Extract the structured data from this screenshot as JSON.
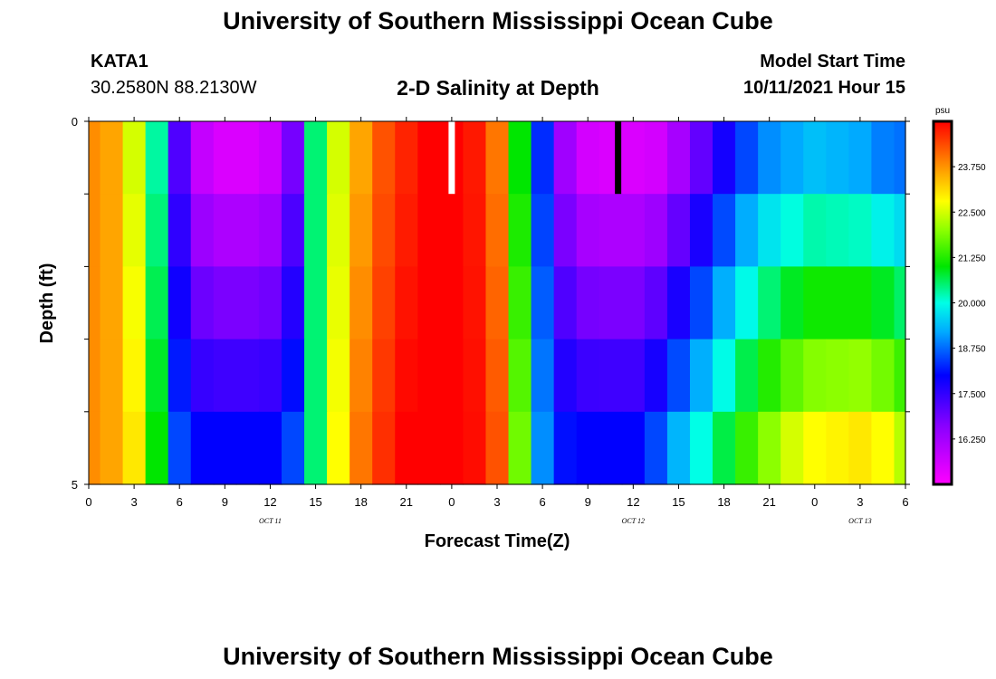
{
  "header": {
    "title_top": "University of Southern Mississippi Ocean Cube",
    "title_bottom": "University of Southern Mississippi Ocean Cube",
    "station_id": "KATA1",
    "station_coords": "30.2580N  88.2130W",
    "chart_title": "2-D Salinity at Depth",
    "model_label": "Model Start Time",
    "model_time": "10/11/2021 Hour 15"
  },
  "chart_data": {
    "type": "heatmap",
    "title": "2-D Salinity at Depth",
    "xlabel": "Forecast Time(Z)",
    "ylabel": "Depth (ft)",
    "x_tick_labels": [
      "0",
      "3",
      "6",
      "9",
      "12",
      "15",
      "18",
      "21",
      "0",
      "3",
      "6",
      "9",
      "12",
      "15",
      "18",
      "21",
      "0",
      "3",
      "6"
    ],
    "x_range_hours": [
      0,
      54
    ],
    "date_labels": [
      {
        "text": "OCT 11",
        "hour": 12
      },
      {
        "text": "OCT 12",
        "hour": 36
      },
      {
        "text": "OCT 13",
        "hour": 51
      }
    ],
    "y_tick_labels": [
      "0",
      "5"
    ],
    "y_range": [
      0,
      5
    ],
    "depth_levels": 5,
    "hours": [
      0,
      1.5,
      3,
      4.5,
      6,
      7.5,
      9,
      10.5,
      12,
      13.5,
      15,
      16.5,
      18,
      19.5,
      21,
      22.5,
      24,
      25.5,
      27,
      28.5,
      30,
      31.5,
      33,
      34.5,
      36,
      37.5,
      39,
      40.5,
      42,
      43.5,
      45,
      46.5,
      48,
      49.5,
      51,
      52.5,
      54
    ],
    "surface_salinity": [
      23.8,
      23.6,
      22.5,
      20.3,
      17.2,
      15.8,
      15.5,
      15.5,
      15.7,
      16.8,
      20.5,
      22.5,
      23.6,
      24.3,
      24.7,
      25.0,
      25.0,
      24.8,
      24.0,
      21.0,
      18.3,
      16.3,
      15.6,
      15.5,
      15.5,
      15.6,
      16.2,
      17.0,
      17.8,
      18.5,
      19.0,
      19.2,
      19.4,
      19.3,
      19.2,
      18.9,
      18.8
    ],
    "bottom_salinity": [
      23.8,
      23.6,
      23.0,
      21.0,
      18.5,
      18.0,
      18.0,
      18.0,
      18.0,
      18.5,
      20.5,
      22.8,
      24.0,
      24.6,
      25.0,
      25.0,
      25.0,
      24.9,
      24.3,
      21.8,
      19.0,
      18.1,
      18.0,
      18.0,
      18.0,
      18.5,
      19.3,
      20.0,
      20.7,
      21.4,
      22.0,
      22.5,
      22.8,
      22.9,
      23.0,
      22.8,
      22.3
    ],
    "colorbar": {
      "unit": "psu",
      "min": 15.0,
      "max": 25.0,
      "tick_labels": [
        "23.750",
        "22.500",
        "21.250",
        "20.000",
        "18.750",
        "17.500",
        "16.250"
      ],
      "tick_values": [
        23.75,
        22.5,
        21.25,
        20.0,
        18.75,
        17.5,
        16.25
      ]
    },
    "markers": [
      {
        "hour": 24,
        "color": "#ffffff"
      },
      {
        "hour": 35,
        "color": "#000000"
      }
    ],
    "grid": false
  }
}
